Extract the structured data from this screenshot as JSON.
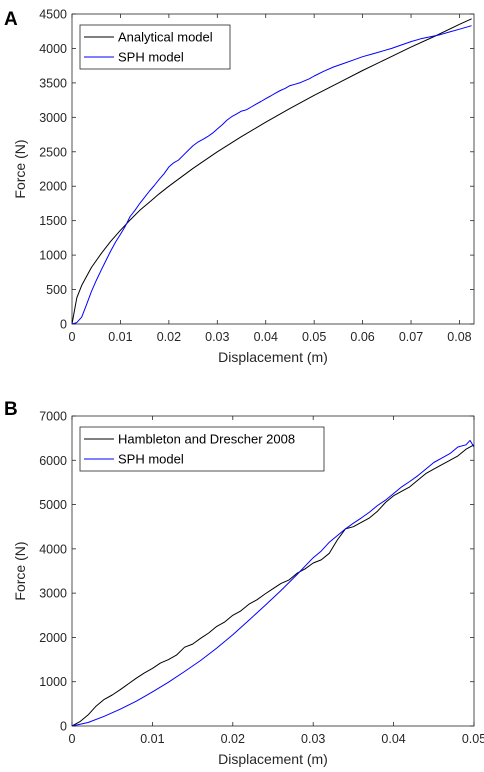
{
  "colors": {
    "analytical": "#000000",
    "sph": "#0000ff",
    "axis": "#262626",
    "legend_border": "#262626"
  },
  "chart_data": [
    {
      "panel": "A",
      "type": "line",
      "xlabel": "Displacement (m)",
      "ylabel": "Force (N)",
      "xlim": [
        0,
        0.083
      ],
      "ylim": [
        0,
        4500
      ],
      "xticks": [
        0,
        0.01,
        0.02,
        0.03,
        0.04,
        0.05,
        0.06,
        0.07,
        0.08
      ],
      "xtick_labels": [
        "0",
        "0.01",
        "0.02",
        "0.03",
        "0.04",
        "0.05",
        "0.06",
        "0.07",
        "0.08"
      ],
      "yticks": [
        0,
        500,
        1000,
        1500,
        2000,
        2500,
        3000,
        3500,
        4000,
        4500
      ],
      "ytick_labels": [
        "0",
        "500",
        "1000",
        "1500",
        "2000",
        "2500",
        "3000",
        "3500",
        "4000",
        "4500"
      ],
      "grid": false,
      "legend_position": "top-left",
      "series": [
        {
          "name": "Analytical model",
          "color": "#000000",
          "x": [
            0,
            0.001,
            0.002,
            0.004,
            0.006,
            0.008,
            0.01,
            0.012,
            0.014,
            0.016,
            0.018,
            0.02,
            0.025,
            0.03,
            0.035,
            0.04,
            0.045,
            0.05,
            0.055,
            0.06,
            0.065,
            0.07,
            0.075,
            0.08,
            0.0825
          ],
          "y": [
            0,
            380,
            560,
            820,
            1020,
            1200,
            1360,
            1510,
            1650,
            1770,
            1890,
            2000,
            2260,
            2500,
            2720,
            2930,
            3130,
            3320,
            3500,
            3680,
            3850,
            4020,
            4180,
            4350,
            4430
          ]
        },
        {
          "name": "SPH model",
          "color": "#0000ff",
          "x": [
            0,
            0.001,
            0.002,
            0.003,
            0.004,
            0.005,
            0.006,
            0.007,
            0.008,
            0.009,
            0.01,
            0.011,
            0.012,
            0.013,
            0.014,
            0.015,
            0.016,
            0.017,
            0.018,
            0.019,
            0.02,
            0.021,
            0.022,
            0.023,
            0.024,
            0.025,
            0.026,
            0.027,
            0.028,
            0.029,
            0.03,
            0.031,
            0.032,
            0.033,
            0.034,
            0.035,
            0.036,
            0.037,
            0.038,
            0.039,
            0.04,
            0.041,
            0.042,
            0.043,
            0.044,
            0.045,
            0.046,
            0.047,
            0.048,
            0.049,
            0.05,
            0.052,
            0.054,
            0.056,
            0.058,
            0.06,
            0.062,
            0.064,
            0.066,
            0.068,
            0.07,
            0.072,
            0.074,
            0.076,
            0.078,
            0.08,
            0.0825
          ],
          "y": [
            0,
            20,
            100,
            280,
            470,
            630,
            780,
            920,
            1060,
            1190,
            1300,
            1420,
            1560,
            1650,
            1750,
            1840,
            1930,
            2010,
            2100,
            2180,
            2280,
            2340,
            2380,
            2450,
            2520,
            2590,
            2640,
            2680,
            2720,
            2770,
            2830,
            2890,
            2960,
            3010,
            3050,
            3090,
            3110,
            3150,
            3190,
            3230,
            3270,
            3310,
            3350,
            3390,
            3420,
            3460,
            3480,
            3500,
            3530,
            3560,
            3600,
            3670,
            3730,
            3780,
            3830,
            3880,
            3920,
            3960,
            4000,
            4050,
            4100,
            4140,
            4170,
            4200,
            4240,
            4280,
            4330
          ]
        }
      ]
    },
    {
      "panel": "B",
      "type": "line",
      "xlabel": "Displacement (m)",
      "ylabel": "Force (N)",
      "xlim": [
        0,
        0.05
      ],
      "ylim": [
        0,
        7000
      ],
      "xticks": [
        0,
        0.01,
        0.02,
        0.03,
        0.04,
        0.05
      ],
      "xtick_labels": [
        "0",
        "0.01",
        "0.02",
        "0.03",
        "0.04",
        "0.05"
      ],
      "yticks": [
        0,
        1000,
        2000,
        3000,
        4000,
        5000,
        6000,
        7000
      ],
      "ytick_labels": [
        "0",
        "1000",
        "2000",
        "3000",
        "4000",
        "5000",
        "6000",
        "7000"
      ],
      "grid": false,
      "legend_position": "top-left",
      "series": [
        {
          "name": "Hambleton and Drescher 2008",
          "color": "#000000",
          "x": [
            0,
            0.001,
            0.002,
            0.003,
            0.004,
            0.005,
            0.006,
            0.007,
            0.008,
            0.009,
            0.01,
            0.011,
            0.012,
            0.013,
            0.014,
            0.015,
            0.016,
            0.017,
            0.018,
            0.019,
            0.02,
            0.021,
            0.022,
            0.023,
            0.024,
            0.025,
            0.026,
            0.027,
            0.028,
            0.029,
            0.03,
            0.031,
            0.032,
            0.033,
            0.034,
            0.035,
            0.036,
            0.037,
            0.038,
            0.039,
            0.04,
            0.041,
            0.042,
            0.043,
            0.044,
            0.045,
            0.046,
            0.047,
            0.048,
            0.049,
            0.05
          ],
          "y": [
            0,
            100,
            250,
            450,
            600,
            700,
            820,
            950,
            1080,
            1200,
            1300,
            1420,
            1500,
            1600,
            1780,
            1850,
            1980,
            2100,
            2250,
            2350,
            2500,
            2600,
            2750,
            2850,
            2980,
            3100,
            3220,
            3300,
            3450,
            3550,
            3680,
            3750,
            3900,
            4200,
            4450,
            4500,
            4600,
            4700,
            4850,
            5050,
            5200,
            5300,
            5400,
            5550,
            5700,
            5800,
            5900,
            6000,
            6100,
            6250,
            6350
          ]
        },
        {
          "name": "SPH model",
          "color": "#0000ff",
          "x": [
            0,
            0.002,
            0.004,
            0.006,
            0.008,
            0.01,
            0.012,
            0.014,
            0.016,
            0.018,
            0.02,
            0.022,
            0.024,
            0.026,
            0.028,
            0.03,
            0.031,
            0.032,
            0.033,
            0.034,
            0.035,
            0.036,
            0.037,
            0.038,
            0.039,
            0.04,
            0.041,
            0.042,
            0.043,
            0.044,
            0.045,
            0.046,
            0.047,
            0.048,
            0.049,
            0.0495,
            0.05
          ],
          "y": [
            0,
            80,
            220,
            380,
            560,
            770,
            990,
            1230,
            1480,
            1760,
            2060,
            2390,
            2720,
            3060,
            3420,
            3800,
            3950,
            4150,
            4300,
            4450,
            4580,
            4700,
            4830,
            4980,
            5100,
            5250,
            5400,
            5520,
            5650,
            5800,
            5950,
            6050,
            6150,
            6300,
            6350,
            6450,
            6300
          ]
        }
      ]
    }
  ]
}
